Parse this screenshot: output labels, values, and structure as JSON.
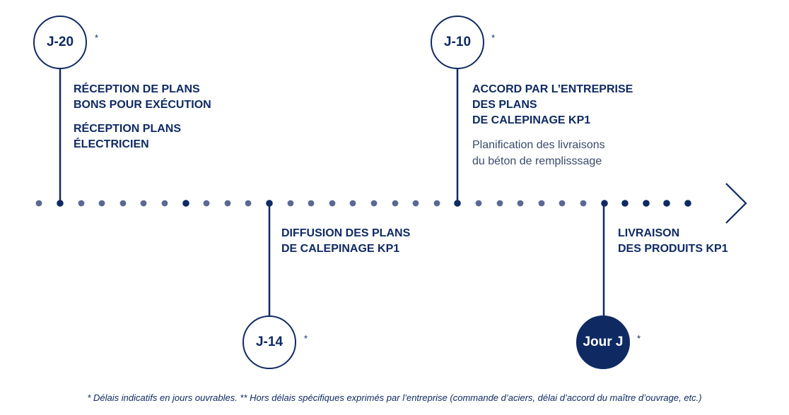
{
  "milestones": [
    {
      "badge": "J-20",
      "asterisk": "*",
      "titles": [
        "RÉCEPTION DE PLANS\nBONS POUR EXÉCUTION",
        "RÉCEPTION PLANS\nÉLECTRICIEN"
      ],
      "description": ""
    },
    {
      "badge": "J-14",
      "asterisk": "*",
      "titles": [
        "DIFFUSION DES PLANS\nDE CALEPINAGE KP1"
      ],
      "description": ""
    },
    {
      "badge": "J-10",
      "asterisk": "*",
      "titles": [
        "ACCORD PAR L’ENTREPRISE\nDES PLANS\nDE CALEPINAGE KP1"
      ],
      "description": "Planification des livraisons\ndu béton de remplisssage"
    },
    {
      "badge": "Jour J",
      "asterisk": "*",
      "titles": [
        "LIVRAISON\nDES PRODUITS KP1"
      ],
      "description": ""
    }
  ],
  "footnote": "* Délais indicatifs en jours ouvrables. ** Hors délais spécifiques exprimés par l’entreprise (commande d’aciers, délai d’accord du maître d’ouvrage, etc.)",
  "colors": {
    "navy": "#0f2a63",
    "dot_light": "#5b6893",
    "text_grey": "#3a4a6b"
  },
  "icons": {
    "end_arrow": "chevron-right-icon"
  }
}
